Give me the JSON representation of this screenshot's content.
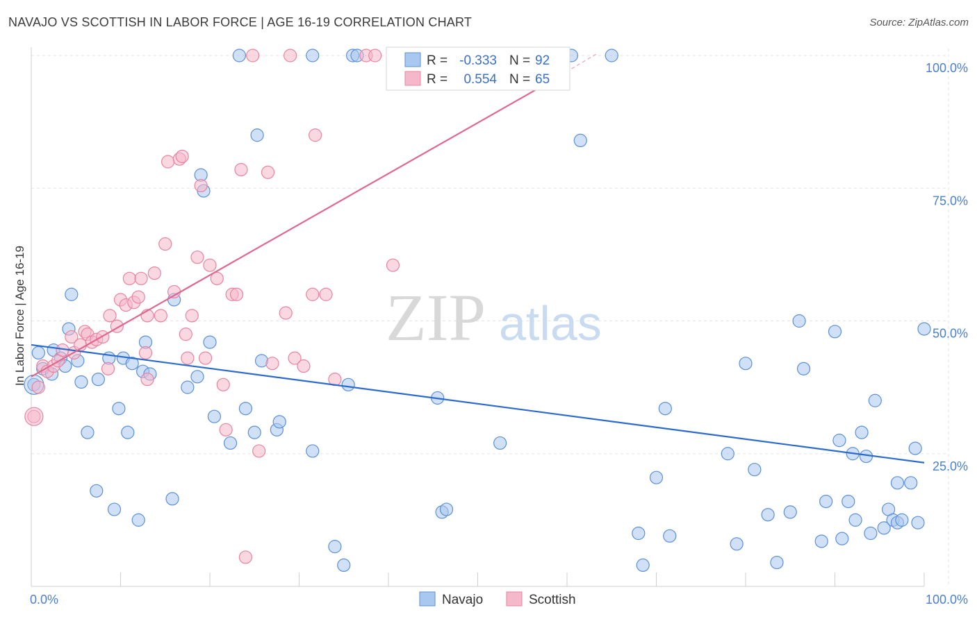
{
  "header": {
    "title": "NAVAJO VS SCOTTISH IN LABOR FORCE | AGE 16-19 CORRELATION CHART",
    "source": "Source: ZipAtlas.com"
  },
  "watermark": {
    "zip": "ZIP",
    "atlas": "atlas"
  },
  "legend": {
    "rows": [
      {
        "r_label": "R =",
        "r_value": "-0.333",
        "n_label": "N =",
        "n_value": "92",
        "color": "#a9c8f0"
      },
      {
        "r_label": "R =",
        "r_value": "0.554",
        "n_label": "N =",
        "n_value": "65",
        "color": "#f5b8cb"
      }
    ]
  },
  "bottom_legend": [
    {
      "label": "Navajo",
      "color": "#a9c8f0"
    },
    {
      "label": "Scottish",
      "color": "#f5b8cb"
    }
  ],
  "chart_data": {
    "type": "scatter",
    "ylabel": "In Labor Force | Age 16-19",
    "xlim": [
      0,
      100
    ],
    "ylim": [
      0,
      103
    ],
    "x_tick_labels": [
      "0.0%",
      "100.0%"
    ],
    "y_ticks": [
      {
        "value": 25,
        "label": "25.0%"
      },
      {
        "value": 50,
        "label": "50.0%"
      },
      {
        "value": 75,
        "label": "75.0%"
      },
      {
        "value": 100,
        "label": "100.0%"
      }
    ],
    "colors": {
      "navajo_fill": "#a9c8f0",
      "navajo_stroke": "#5b8fd8",
      "navajo_line": "#2a6ad0",
      "scottish_fill": "#f5b8cb",
      "scottish_stroke": "#e8839f",
      "scottish_line": "#e0668e"
    },
    "series": [
      {
        "name": "Navajo",
        "trend": {
          "x0": 0,
          "y0": 45.5,
          "x1": 100,
          "y1": 23.3
        },
        "points": [
          [
            0.3,
            38
          ],
          [
            0.8,
            44
          ],
          [
            1.3,
            41
          ],
          [
            2.3,
            40
          ],
          [
            2.5,
            44.5
          ],
          [
            3.3,
            43
          ],
          [
            3.8,
            41.5
          ],
          [
            4.2,
            48.5
          ],
          [
            4.5,
            55
          ],
          [
            5.2,
            42.5
          ],
          [
            5.6,
            38.5
          ],
          [
            6.3,
            29
          ],
          [
            7.3,
            18
          ],
          [
            7.5,
            39
          ],
          [
            8.7,
            43
          ],
          [
            9.3,
            14.5
          ],
          [
            9.8,
            33.5
          ],
          [
            10.3,
            43
          ],
          [
            10.8,
            29
          ],
          [
            11.3,
            42
          ],
          [
            12.0,
            12.5
          ],
          [
            12.5,
            40.5
          ],
          [
            12.8,
            46
          ],
          [
            13.3,
            40
          ],
          [
            15.8,
            16.5
          ],
          [
            16.0,
            54
          ],
          [
            17.5,
            37.5
          ],
          [
            18.6,
            39.5
          ],
          [
            19.0,
            77.5
          ],
          [
            19.3,
            74.5
          ],
          [
            20.0,
            46
          ],
          [
            20.5,
            32
          ],
          [
            22.3,
            27
          ],
          [
            23.3,
            100
          ],
          [
            24.0,
            33.5
          ],
          [
            25.0,
            29
          ],
          [
            25.3,
            85
          ],
          [
            25.8,
            42.5
          ],
          [
            27.5,
            29.5
          ],
          [
            27.8,
            31
          ],
          [
            31.5,
            100
          ],
          [
            31.5,
            25.5
          ],
          [
            34.0,
            7.5
          ],
          [
            35.0,
            4
          ],
          [
            35.5,
            38
          ],
          [
            36.0,
            100
          ],
          [
            36.5,
            100
          ],
          [
            45.5,
            35.5
          ],
          [
            46.0,
            14
          ],
          [
            46.5,
            14.5
          ],
          [
            52.5,
            27
          ],
          [
            56.0,
            95
          ],
          [
            60.5,
            100
          ],
          [
            61.5,
            84
          ],
          [
            65.0,
            100
          ],
          [
            68.0,
            10
          ],
          [
            70.0,
            20.5
          ],
          [
            71.0,
            33.5
          ],
          [
            71.5,
            9.5
          ],
          [
            78.0,
            25
          ],
          [
            79.0,
            8
          ],
          [
            80.0,
            42
          ],
          [
            81.0,
            22
          ],
          [
            82.5,
            13.5
          ],
          [
            83.5,
            4.5
          ],
          [
            85.0,
            14
          ],
          [
            86.0,
            50
          ],
          [
            86.5,
            41
          ],
          [
            88.5,
            8.5
          ],
          [
            89.0,
            16
          ],
          [
            90.0,
            48
          ],
          [
            90.5,
            27.5
          ],
          [
            90.8,
            9
          ],
          [
            91.5,
            16
          ],
          [
            92.0,
            25
          ],
          [
            92.3,
            12.5
          ],
          [
            93.0,
            29
          ],
          [
            93.5,
            24.5
          ],
          [
            94.0,
            10
          ],
          [
            94.5,
            35
          ],
          [
            95.5,
            11
          ],
          [
            96.0,
            14.5
          ],
          [
            96.5,
            12.5
          ],
          [
            97.0,
            12
          ],
          [
            97.5,
            12.5
          ],
          [
            97.0,
            19.5
          ],
          [
            98.5,
            19.5
          ],
          [
            99.0,
            26
          ],
          [
            99.3,
            12
          ],
          [
            100.0,
            48.5
          ],
          [
            68.5,
            4
          ],
          [
            56.5,
            100
          ]
        ]
      },
      {
        "name": "Scottish",
        "trend": {
          "x0": 0,
          "y0": 39.5,
          "x1": 57.5,
          "y1": 94.5,
          "x_dash_end": 63.5,
          "y_dash_end": 100.5
        },
        "points": [
          [
            0.3,
            32
          ],
          [
            0.8,
            37.5
          ],
          [
            1.3,
            41.5
          ],
          [
            1.8,
            40.5
          ],
          [
            2.5,
            41.5
          ],
          [
            3.0,
            42.5
          ],
          [
            3.5,
            44.5
          ],
          [
            4.5,
            47
          ],
          [
            4.8,
            44
          ],
          [
            5.5,
            45.5
          ],
          [
            6.0,
            48
          ],
          [
            6.3,
            47.5
          ],
          [
            6.8,
            46
          ],
          [
            7.3,
            46.5
          ],
          [
            8.0,
            47
          ],
          [
            8.6,
            41
          ],
          [
            8.8,
            51
          ],
          [
            9.6,
            49
          ],
          [
            10.0,
            54
          ],
          [
            10.6,
            53
          ],
          [
            11.0,
            58
          ],
          [
            11.5,
            53.5
          ],
          [
            12.0,
            54.5
          ],
          [
            12.3,
            58
          ],
          [
            12.8,
            44
          ],
          [
            13.0,
            51
          ],
          [
            13.8,
            59
          ],
          [
            14.5,
            51
          ],
          [
            15.0,
            64.5
          ],
          [
            15.3,
            80
          ],
          [
            16.0,
            55.5
          ],
          [
            16.6,
            80.5
          ],
          [
            16.9,
            81
          ],
          [
            17.3,
            47.5
          ],
          [
            17.5,
            43
          ],
          [
            18.0,
            51
          ],
          [
            18.6,
            62
          ],
          [
            19.0,
            75.5
          ],
          [
            19.5,
            43
          ],
          [
            20.0,
            60.5
          ],
          [
            20.8,
            58
          ],
          [
            21.5,
            38
          ],
          [
            21.8,
            29.5
          ],
          [
            22.5,
            55
          ],
          [
            23.0,
            55
          ],
          [
            23.5,
            78.5
          ],
          [
            24.0,
            5.5
          ],
          [
            24.8,
            100
          ],
          [
            25.5,
            25.5
          ],
          [
            26.5,
            78
          ],
          [
            27.0,
            42
          ],
          [
            28.5,
            51.5
          ],
          [
            29.0,
            100
          ],
          [
            29.5,
            43
          ],
          [
            30.5,
            41.5
          ],
          [
            31.5,
            55
          ],
          [
            31.8,
            85
          ],
          [
            34.0,
            39
          ],
          [
            37.5,
            100
          ],
          [
            38.5,
            100
          ],
          [
            40.5,
            60.5
          ],
          [
            41.5,
            100
          ],
          [
            43.0,
            100
          ],
          [
            33.0,
            55
          ],
          [
            13.0,
            39
          ]
        ]
      }
    ]
  }
}
